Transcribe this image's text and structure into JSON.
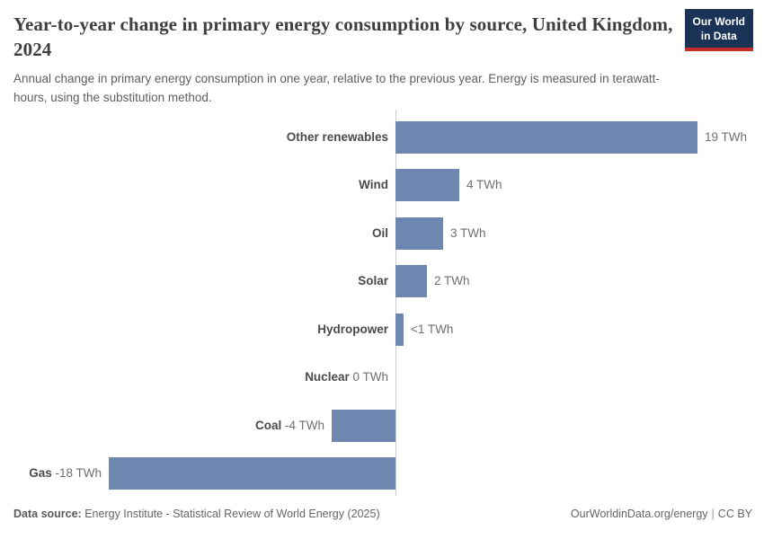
{
  "header": {
    "title": "Year-to-year change in primary energy consumption by source, United Kingdom, 2024",
    "subtitle": "Annual change in primary energy consumption in one year, relative to the previous year. Energy is measured in terawatt-hours, using the substitution method.",
    "logo": {
      "line1": "Our World",
      "line2": "in Data"
    }
  },
  "chart_data": {
    "type": "bar",
    "orientation": "horizontal",
    "title": "Year-to-year change in primary energy consumption by source, United Kingdom, 2024",
    "unit": "TWh",
    "categories": [
      "Other renewables",
      "Wind",
      "Oil",
      "Solar",
      "Hydropower",
      "Nuclear",
      "Coal",
      "Gas"
    ],
    "values": [
      19,
      4,
      3,
      2,
      0.5,
      0,
      -4,
      -18
    ],
    "value_labels": [
      "19 TWh",
      "4 TWh",
      "3 TWh",
      "2 TWh",
      "<1 TWh",
      "0 TWh",
      "-4 TWh",
      "-18 TWh"
    ],
    "xlim": [
      -18,
      19
    ],
    "grid": false,
    "legend": false,
    "bar_color": "#6d87b0",
    "axis_color": "#c7ccd3"
  },
  "footer": {
    "datasource_label": "Data source:",
    "datasource_value": "Energy Institute - Statistical Review of World Energy (2025)",
    "url": "OurWorldinData.org/energy",
    "separator": "|",
    "license": "CC BY"
  }
}
